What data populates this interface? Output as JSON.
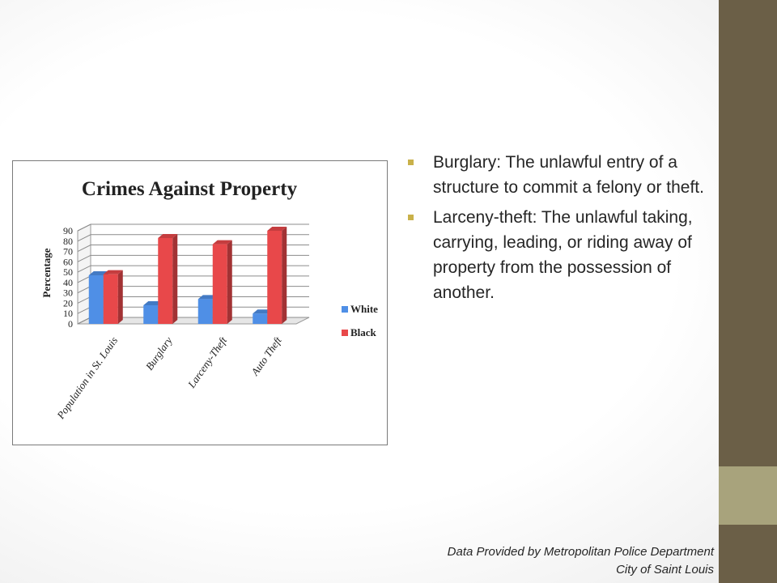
{
  "chart_data": {
    "type": "bar",
    "title": "Crimes Against Property",
    "ylabel": "Percentage",
    "xlabel": "",
    "ylim": [
      0,
      90
    ],
    "yticks": [
      0,
      10,
      20,
      30,
      40,
      50,
      60,
      70,
      80,
      90
    ],
    "categories": [
      "Population in St. Louis",
      "Burglary",
      "Larceny-Theft",
      "Auto Theft"
    ],
    "series": [
      {
        "name": "White",
        "color": "#4f8fe6",
        "values": [
          47,
          18,
          24,
          10
        ]
      },
      {
        "name": "Black",
        "color": "#e8484a",
        "values": [
          48,
          83,
          77,
          90
        ]
      }
    ],
    "legend": "right",
    "grid": true
  },
  "bullets": [
    {
      "text": "Burglary: The unlawful entry of a structure to commit a felony or theft."
    },
    {
      "text": "Larceny-theft: The unlawful taking, carrying, leading, or riding away of property from the possession of another."
    }
  ],
  "source": {
    "line1": "Data Provided by Metropolitan Police Department",
    "line2": "City of Saint Louis"
  }
}
